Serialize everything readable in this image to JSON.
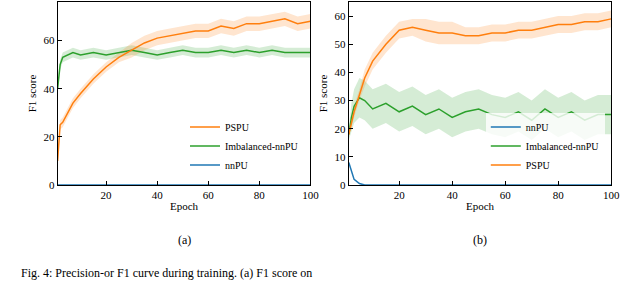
{
  "caption": "Fig. 4: Precision-or F1 curve during training. (a) F1 score on",
  "chart_data": [
    {
      "type": "line",
      "label": "(a)",
      "x_label": "Epoch",
      "y_label": "F1 score",
      "xlim": [
        1,
        100
      ],
      "xticks": [
        20,
        40,
        60,
        80,
        100
      ],
      "ylim": [
        0,
        76
      ],
      "yticks": [
        0,
        20,
        40,
        60
      ],
      "legend": "lower right",
      "x": [
        1,
        2,
        3,
        5,
        7,
        10,
        15,
        20,
        25,
        30,
        35,
        40,
        45,
        50,
        55,
        60,
        65,
        70,
        75,
        80,
        85,
        90,
        95,
        100
      ],
      "series": [
        {
          "name": "nnPU",
          "color": "#1f77b4",
          "values": [
            0,
            0,
            0,
            0,
            0,
            0,
            0,
            0,
            0,
            0,
            0,
            0,
            0,
            0,
            0,
            0,
            0,
            0,
            0,
            0,
            0,
            0,
            0,
            0
          ]
        },
        {
          "name": "Imbalanced-nnPU",
          "color": "#2ca02c",
          "values": [
            40,
            50,
            53,
            54,
            55,
            54,
            55,
            54,
            55,
            56,
            55,
            54,
            55,
            56,
            55,
            55,
            56,
            55,
            56,
            55,
            56,
            55,
            55,
            55
          ],
          "lower": [
            38,
            48,
            51,
            52,
            53,
            52,
            53,
            52,
            53,
            54,
            53,
            52,
            53,
            54,
            53,
            53,
            54,
            53,
            54,
            53,
            54,
            53,
            53,
            53
          ],
          "upper": [
            42,
            52,
            55,
            56,
            57,
            56,
            57,
            56,
            57,
            58,
            57,
            56,
            57,
            58,
            57,
            57,
            58,
            57,
            58,
            57,
            58,
            57,
            57,
            57
          ]
        },
        {
          "name": "PSPU",
          "color": "#ff7f0e",
          "values": [
            10,
            25,
            26,
            30,
            34,
            38,
            44,
            49,
            53,
            56,
            59,
            61,
            62,
            63,
            64,
            64,
            66,
            65,
            67,
            67,
            68,
            69,
            67,
            68
          ],
          "lower": [
            8,
            23,
            24,
            28,
            32,
            36,
            42,
            47,
            51,
            53,
            56,
            58,
            59,
            60,
            61,
            61,
            63,
            62,
            64,
            64,
            65,
            66,
            64,
            65
          ],
          "upper": [
            12,
            27,
            28,
            32,
            36,
            40,
            46,
            51,
            55,
            59,
            62,
            64,
            65,
            66,
            67,
            67,
            69,
            68,
            70,
            70,
            71,
            72,
            70,
            71
          ]
        }
      ]
    },
    {
      "type": "line",
      "label": "(b)",
      "x_label": "Epoch",
      "y_label": "F1 score",
      "xlim": [
        1,
        100
      ],
      "xticks": [
        20,
        40,
        60,
        80,
        100
      ],
      "ylim": [
        0,
        65
      ],
      "yticks": [
        0,
        10,
        20,
        30,
        40,
        50,
        60
      ],
      "legend": "lower right",
      "x": [
        1,
        2,
        3,
        5,
        7,
        10,
        15,
        20,
        25,
        30,
        35,
        40,
        45,
        50,
        55,
        60,
        65,
        70,
        75,
        80,
        85,
        90,
        95,
        100
      ],
      "series": [
        {
          "name": "nnPU",
          "color": "#1f77b4",
          "values": [
            8,
            5,
            2,
            0.5,
            0,
            0,
            0,
            0,
            0,
            0,
            0,
            0,
            0,
            0,
            0,
            0,
            0,
            0,
            0,
            0,
            0,
            0,
            0,
            0
          ]
        },
        {
          "name": "Imbalanced-nnPU",
          "color": "#2ca02c",
          "values": [
            18,
            24,
            28,
            31,
            30,
            27,
            29,
            26,
            28,
            25,
            27,
            24,
            26,
            27,
            25,
            24,
            26,
            23,
            27,
            24,
            26,
            23,
            25,
            25
          ],
          "lower": [
            16,
            19,
            22,
            24,
            23,
            20,
            22,
            19,
            21,
            18,
            20,
            17,
            19,
            20,
            18,
            17,
            19,
            16,
            20,
            17,
            19,
            16,
            18,
            18
          ],
          "upper": [
            20,
            29,
            34,
            38,
            37,
            34,
            36,
            33,
            35,
            32,
            34,
            31,
            33,
            34,
            32,
            31,
            33,
            30,
            34,
            31,
            33,
            30,
            32,
            32
          ]
        },
        {
          "name": "PSPU",
          "color": "#ff7f0e",
          "values": [
            18,
            22,
            26,
            32,
            38,
            44,
            50,
            55,
            56,
            55,
            54,
            54,
            53,
            53,
            54,
            54,
            55,
            55,
            56,
            57,
            57,
            58,
            58,
            59
          ],
          "lower": [
            17,
            21,
            24,
            30,
            35,
            41,
            47,
            52,
            53,
            51,
            50,
            50,
            50,
            50,
            51,
            51,
            52,
            52,
            53,
            54,
            54,
            55,
            55,
            56
          ],
          "upper": [
            19,
            23,
            28,
            34,
            41,
            47,
            53,
            58,
            59,
            59,
            58,
            58,
            56,
            56,
            57,
            57,
            58,
            58,
            59,
            60,
            60,
            61,
            61,
            62
          ]
        }
      ]
    }
  ]
}
